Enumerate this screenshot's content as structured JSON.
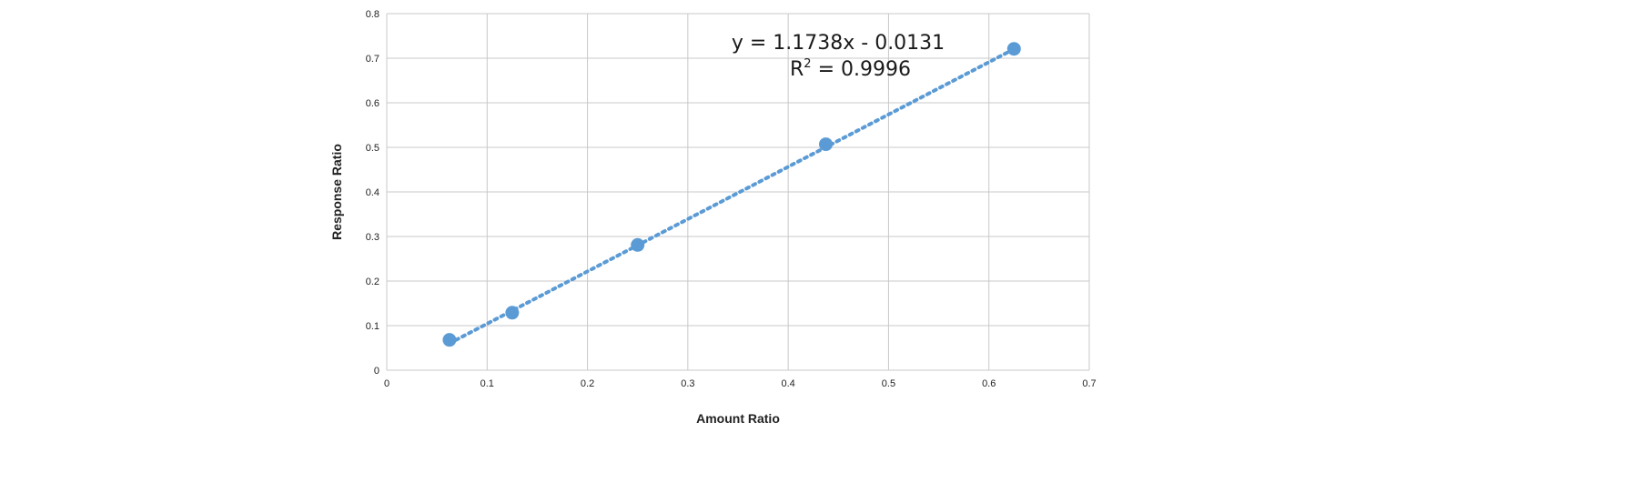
{
  "chart_data": {
    "type": "scatter",
    "title": "",
    "xlabel": "Amount Ratio",
    "ylabel": "Response Ratio",
    "xlim": [
      0,
      0.7
    ],
    "ylim": [
      0,
      0.8
    ],
    "x_ticks": [
      "0",
      "0.1",
      "0.2",
      "0.3",
      "0.4",
      "0.5",
      "0.6",
      "0.7"
    ],
    "y_ticks": [
      "0",
      "0.1",
      "0.2",
      "0.3",
      "0.4",
      "0.5",
      "0.6",
      "0.7",
      "0.8"
    ],
    "grid": true,
    "legend": "none",
    "series": [
      {
        "marker_color": "#5b9bd5",
        "points": [
          {
            "x": 0.0625,
            "y": 0.068
          },
          {
            "x": 0.125,
            "y": 0.129
          },
          {
            "x": 0.25,
            "y": 0.281
          },
          {
            "x": 0.4375,
            "y": 0.507
          },
          {
            "x": 0.625,
            "y": 0.721
          }
        ]
      }
    ],
    "trendline": {
      "type": "linear",
      "style": "dotted",
      "color": "#5b9bd5",
      "slope": 1.1738,
      "intercept": -0.0131,
      "x_range": [
        0.0625,
        0.625
      ],
      "equation_label": "y = 1.1738x - 0.0131",
      "r2_prefix": "R",
      "r2_sup": "2",
      "r2_value": " = 0.9996"
    },
    "grid_color": "#c8c8c8"
  }
}
